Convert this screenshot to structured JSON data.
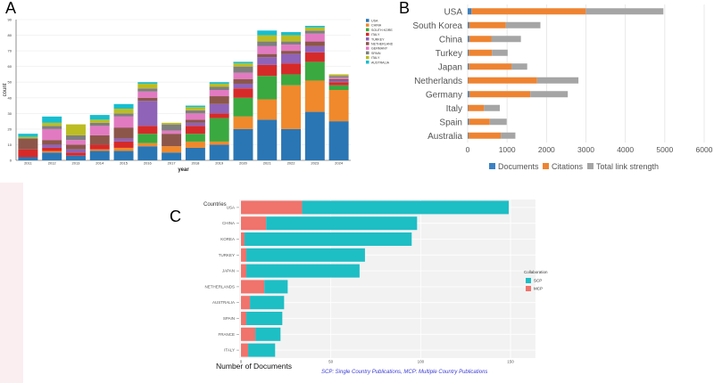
{
  "panels": {
    "a": "A",
    "b": "B",
    "c": "C"
  },
  "chart_data": [
    {
      "type": "bar",
      "stacked": true,
      "panel": "A",
      "xlabel": "year",
      "ylabel": "count",
      "ylim": [
        0,
        90
      ],
      "yticks": [
        0,
        10,
        20,
        30,
        40,
        50,
        60,
        70,
        80,
        90
      ],
      "categories": [
        "2011",
        "2012",
        "2013",
        "2014",
        "2015",
        "2016",
        "2017",
        "2018",
        "2019",
        "2020",
        "2021",
        "2022",
        "2023",
        "2024"
      ],
      "legend_position": "right",
      "series": [
        {
          "name": "USA",
          "color": "#2a76b4",
          "values": [
            2,
            5,
            3,
            6,
            6,
            9,
            5,
            8,
            10,
            20,
            26,
            20,
            31,
            25
          ]
        },
        {
          "name": "CHINA",
          "color": "#f0892b",
          "values": [
            0,
            1,
            0,
            1,
            2,
            2,
            4,
            4,
            2,
            8,
            13,
            28,
            20,
            20
          ]
        },
        {
          "name": "SOUTH KOREA",
          "color": "#3aa940",
          "values": [
            0,
            0,
            0,
            0,
            0,
            6,
            0,
            5,
            15,
            12,
            15,
            7,
            12,
            3
          ]
        },
        {
          "name": "ITALY",
          "color": "#d62a29",
          "values": [
            5,
            2,
            2,
            3,
            4,
            5,
            0,
            5,
            3,
            6,
            7,
            7,
            6,
            2
          ]
        },
        {
          "name": "TURKEY",
          "color": "#8f63b8",
          "values": [
            0,
            2,
            2,
            0,
            2,
            16,
            0,
            2,
            6,
            3,
            5,
            6,
            4,
            1
          ]
        },
        {
          "name": "NETHERLANDS",
          "color": "#8c564b",
          "values": [
            7,
            3,
            3,
            6,
            7,
            2,
            8,
            2,
            5,
            3,
            2,
            2,
            3,
            1
          ]
        },
        {
          "name": "GERMANY",
          "color": "#e27ac2",
          "values": [
            0,
            7,
            3,
            6,
            7,
            4,
            2,
            4,
            4,
            4,
            5,
            4,
            5,
            1
          ]
        },
        {
          "name": "SPAIN",
          "color": "#7f7f7f",
          "values": [
            0,
            2,
            3,
            2,
            2,
            2,
            4,
            2,
            2,
            4,
            3,
            2,
            2,
            1
          ]
        },
        {
          "name": "ITALY",
          "color": "#bcbd22",
          "values": [
            1,
            2,
            7,
            2,
            3,
            3,
            1,
            2,
            2,
            2,
            4,
            4,
            2,
            1
          ]
        },
        {
          "name": "AUSTRALIA",
          "color": "#17becf",
          "values": [
            2,
            4,
            0,
            3,
            3,
            1,
            0,
            1,
            1,
            1,
            3,
            2,
            1,
            0
          ]
        }
      ]
    },
    {
      "type": "bar",
      "orientation": "horizontal",
      "stacked": true,
      "panel": "B",
      "categories": [
        "USA",
        "South Korea",
        "China",
        "Turkey",
        "Japan",
        "Netherlands",
        "Germany",
        "Italy",
        "Spain",
        "Australia"
      ],
      "xlim": [
        0,
        6000
      ],
      "xticks": [
        0,
        1000,
        2000,
        3000,
        4000,
        5000,
        6000
      ],
      "legend_position": "bottom",
      "series": [
        {
          "name": "Documents",
          "color": "#3b82c4",
          "values": [
            95,
            35,
            40,
            25,
            30,
            10,
            40,
            15,
            30,
            20
          ]
        },
        {
          "name": "Citations",
          "color": "#ee8431",
          "values": [
            2900,
            930,
            560,
            590,
            1080,
            1750,
            1550,
            400,
            530,
            820
          ]
        },
        {
          "name": "Total link strength",
          "color": "#a5a5a5",
          "values": [
            1970,
            880,
            750,
            400,
            400,
            1050,
            950,
            400,
            430,
            370
          ]
        }
      ]
    },
    {
      "type": "bar",
      "orientation": "horizontal",
      "stacked": true,
      "panel": "C",
      "ylabel": "Countries",
      "xlabel": "Number of Documents",
      "xlim": [
        0,
        150
      ],
      "xticks": [
        0,
        50,
        100,
        150
      ],
      "categories": [
        "USA",
        "CHINA",
        "KOREA",
        "TURKEY",
        "JAPAN",
        "NETHERLANDS",
        "AUSTRALIA",
        "SPAIN",
        "FRANCE",
        "ITALY"
      ],
      "legend_title": "Collaboration",
      "legend_position": "right",
      "caption": "SCP: Single Country Publications, MCP: Multiple Country Publications",
      "series": [
        {
          "name": "MCP",
          "color": "#f0736c",
          "values": [
            34,
            14,
            2,
            3,
            3,
            13,
            5,
            3,
            8,
            4
          ]
        },
        {
          "name": "SCP",
          "color": "#1ebec5",
          "values": [
            115,
            84,
            93,
            66,
            63,
            13,
            19,
            20,
            14,
            15
          ]
        }
      ]
    }
  ]
}
